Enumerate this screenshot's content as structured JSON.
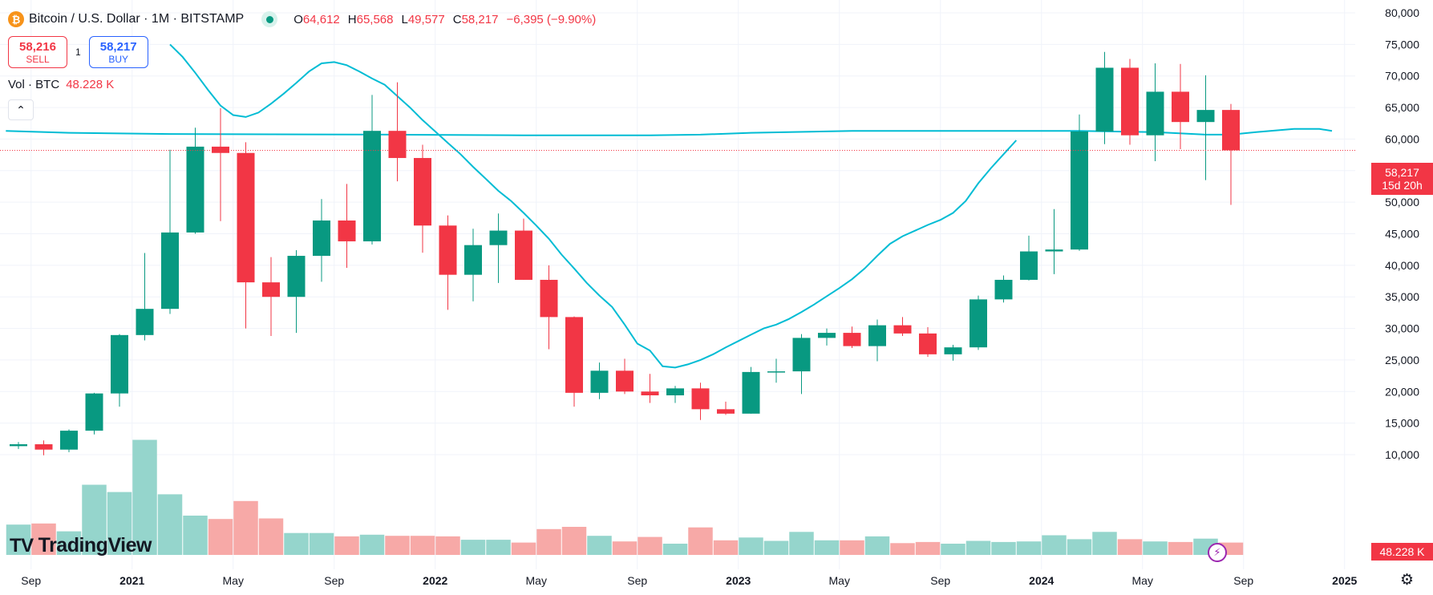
{
  "header": {
    "coin_icon": "bitcoin-icon",
    "coin_glyph": "₿",
    "title": "Bitcoin / U.S. Dollar · 1M · BITSTAMP",
    "ohlc": {
      "o_key": "O",
      "o_val": "64,612",
      "h_key": "H",
      "h_val": "65,568",
      "l_key": "L",
      "l_val": "49,577",
      "c_key": "C",
      "c_val": "58,217",
      "change": "−6,395 (−9.90%)"
    }
  },
  "trade": {
    "sell_price": "58,216",
    "sell_label": "SELL",
    "spread": "1",
    "buy_price": "58,217",
    "buy_label": "BUY"
  },
  "volume_legend": {
    "label": "Vol · BTC",
    "value": "48.228 K"
  },
  "collapse_icon": "chevron-up-icon",
  "collapse_glyph": "⌃",
  "logo": {
    "mark": "TV",
    "text": "TradingView"
  },
  "last_price": {
    "value": "58,217",
    "countdown": "15d 20h"
  },
  "last_volume": "48.228 K",
  "settings_icon": "gear-icon",
  "settings_glyph": "⚙",
  "bolt_icon": "lightning-icon",
  "bolt_glyph": "⚡",
  "colors": {
    "up": "#089981",
    "down": "#f23645",
    "vol_up": "#95d5cc",
    "vol_down": "#f7a9a7",
    "ma": "#00bcd4",
    "grid": "#f0f3fa",
    "axis_text": "#131722"
  },
  "chart_data": {
    "type": "candlestick",
    "title": "Bitcoin / U.S. Dollar · 1M · BITSTAMP",
    "ylim": [
      10000,
      80000
    ],
    "y_ticks": [
      10000,
      15000,
      20000,
      25000,
      30000,
      35000,
      40000,
      45000,
      50000,
      55000,
      60000,
      65000,
      70000,
      75000,
      80000
    ],
    "y_tick_labels": [
      "10,000",
      "15,000",
      "20,000",
      "25,000",
      "30,000",
      "35,000",
      "40,000",
      "45,000",
      "50,000",
      "55,000",
      "60,000",
      "65,000",
      "70,000",
      "75,000",
      "80,000"
    ],
    "x_ticks": [
      {
        "label": "Sep",
        "index": 0.5
      },
      {
        "label": "2021",
        "index": 4.5
      },
      {
        "label": "May",
        "index": 8.5
      },
      {
        "label": "Sep",
        "index": 12.5
      },
      {
        "label": "2022",
        "index": 16.5
      },
      {
        "label": "May",
        "index": 20.5
      },
      {
        "label": "Sep",
        "index": 24.5
      },
      {
        "label": "2023",
        "index": 28.5
      },
      {
        "label": "May",
        "index": 32.5
      },
      {
        "label": "Sep",
        "index": 36.5
      },
      {
        "label": "2024",
        "index": 40.5
      },
      {
        "label": "May",
        "index": 44.5
      },
      {
        "label": "Sep",
        "index": 48.5
      },
      {
        "label": "2025",
        "index": 52.5
      }
    ],
    "month_count": 54,
    "candles": [
      {
        "o": 11350,
        "h": 12000,
        "l": 10900,
        "c": 11650
      },
      {
        "o": 11650,
        "h": 12250,
        "l": 9900,
        "c": 10800
      },
      {
        "o": 10800,
        "h": 14000,
        "l": 10400,
        "c": 13800
      },
      {
        "o": 13800,
        "h": 19800,
        "l": 13200,
        "c": 19700
      },
      {
        "o": 19700,
        "h": 29100,
        "l": 17600,
        "c": 28950
      },
      {
        "o": 28950,
        "h": 41950,
        "l": 28100,
        "c": 33100
      },
      {
        "o": 33100,
        "h": 58300,
        "l": 32300,
        "c": 45200
      },
      {
        "o": 45200,
        "h": 61800,
        "l": 45000,
        "c": 58800
      },
      {
        "o": 58800,
        "h": 64900,
        "l": 47000,
        "c": 57800
      },
      {
        "o": 57800,
        "h": 59500,
        "l": 30000,
        "c": 37300
      },
      {
        "o": 37300,
        "h": 41300,
        "l": 28800,
        "c": 35000
      },
      {
        "o": 35000,
        "h": 42400,
        "l": 29300,
        "c": 41500
      },
      {
        "o": 41500,
        "h": 50500,
        "l": 37400,
        "c": 47100
      },
      {
        "o": 47100,
        "h": 52900,
        "l": 39600,
        "c": 43800
      },
      {
        "o": 43800,
        "h": 67000,
        "l": 43300,
        "c": 61300
      },
      {
        "o": 61300,
        "h": 69000,
        "l": 53300,
        "c": 57000
      },
      {
        "o": 57000,
        "h": 59100,
        "l": 42000,
        "c": 46300
      },
      {
        "o": 46300,
        "h": 47900,
        "l": 32950,
        "c": 38500
      },
      {
        "o": 38500,
        "h": 45800,
        "l": 34300,
        "c": 43200
      },
      {
        "o": 43200,
        "h": 48200,
        "l": 37200,
        "c": 45500
      },
      {
        "o": 45500,
        "h": 47400,
        "l": 37700,
        "c": 37700
      },
      {
        "o": 37700,
        "h": 40000,
        "l": 26700,
        "c": 31800
      },
      {
        "o": 31800,
        "h": 31900,
        "l": 17600,
        "c": 19800
      },
      {
        "o": 19800,
        "h": 24600,
        "l": 18800,
        "c": 23300
      },
      {
        "o": 23300,
        "h": 25200,
        "l": 19600,
        "c": 20000
      },
      {
        "o": 20000,
        "h": 22800,
        "l": 18200,
        "c": 19400
      },
      {
        "o": 19400,
        "h": 20900,
        "l": 18200,
        "c": 20500
      },
      {
        "o": 20500,
        "h": 21400,
        "l": 15500,
        "c": 17200
      },
      {
        "o": 17200,
        "h": 18400,
        "l": 16300,
        "c": 16500
      },
      {
        "o": 16500,
        "h": 23900,
        "l": 16500,
        "c": 23100
      },
      {
        "o": 23100,
        "h": 25200,
        "l": 21400,
        "c": 23200
      },
      {
        "o": 23200,
        "h": 29100,
        "l": 19600,
        "c": 28500
      },
      {
        "o": 28500,
        "h": 30000,
        "l": 27300,
        "c": 29300
      },
      {
        "o": 29300,
        "h": 30300,
        "l": 26900,
        "c": 27200
      },
      {
        "o": 27200,
        "h": 31400,
        "l": 24800,
        "c": 30500
      },
      {
        "o": 30500,
        "h": 31800,
        "l": 28800,
        "c": 29200
      },
      {
        "o": 29200,
        "h": 30200,
        "l": 25500,
        "c": 25900
      },
      {
        "o": 25900,
        "h": 27400,
        "l": 24900,
        "c": 27000
      },
      {
        "o": 27000,
        "h": 35200,
        "l": 26600,
        "c": 34600
      },
      {
        "o": 34600,
        "h": 38400,
        "l": 34100,
        "c": 37700
      },
      {
        "o": 37700,
        "h": 44700,
        "l": 37600,
        "c": 42200
      },
      {
        "o": 42200,
        "h": 48900,
        "l": 38600,
        "c": 42500
      },
      {
        "o": 42500,
        "h": 63900,
        "l": 42300,
        "c": 61200
      },
      {
        "o": 61200,
        "h": 73800,
        "l": 59200,
        "c": 71300
      },
      {
        "o": 71300,
        "h": 72700,
        "l": 59100,
        "c": 60600
      },
      {
        "o": 60600,
        "h": 72000,
        "l": 56500,
        "c": 67500
      },
      {
        "o": 67500,
        "h": 71900,
        "l": 58400,
        "c": 62700
      },
      {
        "o": 62700,
        "h": 70100,
        "l": 53500,
        "c": 64612
      },
      {
        "o": 64612,
        "h": 65568,
        "l": 49577,
        "c": 58217
      }
    ],
    "volume_max": 80000,
    "volumes": [
      {
        "v": 5400,
        "up": true
      },
      {
        "v": 5600,
        "up": false
      },
      {
        "v": 4200,
        "up": true
      },
      {
        "v": 12500,
        "up": true
      },
      {
        "v": 11200,
        "up": true
      },
      {
        "v": 20500,
        "up": true
      },
      {
        "v": 10800,
        "up": true
      },
      {
        "v": 7000,
        "up": true
      },
      {
        "v": 6400,
        "up": false
      },
      {
        "v": 9600,
        "up": false
      },
      {
        "v": 6500,
        "up": false
      },
      {
        "v": 3900,
        "up": true
      },
      {
        "v": 3900,
        "up": true
      },
      {
        "v": 3300,
        "up": false
      },
      {
        "v": 3600,
        "up": true
      },
      {
        "v": 3400,
        "up": false
      },
      {
        "v": 3400,
        "up": false
      },
      {
        "v": 3300,
        "up": false
      },
      {
        "v": 2700,
        "up": true
      },
      {
        "v": 2700,
        "up": true
      },
      {
        "v": 2200,
        "up": false
      },
      {
        "v": 4600,
        "up": false
      },
      {
        "v": 5000,
        "up": false
      },
      {
        "v": 3400,
        "up": true
      },
      {
        "v": 2400,
        "up": false
      },
      {
        "v": 3200,
        "up": false
      },
      {
        "v": 2000,
        "up": true
      },
      {
        "v": 4900,
        "up": false
      },
      {
        "v": 2600,
        "up": false
      },
      {
        "v": 3100,
        "up": true
      },
      {
        "v": 2500,
        "up": true
      },
      {
        "v": 4100,
        "up": true
      },
      {
        "v": 2600,
        "up": true
      },
      {
        "v": 2600,
        "up": false
      },
      {
        "v": 3300,
        "up": true
      },
      {
        "v": 2100,
        "up": false
      },
      {
        "v": 2300,
        "up": false
      },
      {
        "v": 2000,
        "up": true
      },
      {
        "v": 2500,
        "up": true
      },
      {
        "v": 2300,
        "up": true
      },
      {
        "v": 2400,
        "up": true
      },
      {
        "v": 3500,
        "up": true
      },
      {
        "v": 2800,
        "up": true
      },
      {
        "v": 4100,
        "up": true
      },
      {
        "v": 2800,
        "up": false
      },
      {
        "v": 2400,
        "up": true
      },
      {
        "v": 2300,
        "up": false
      },
      {
        "v": 2900,
        "up": true
      },
      {
        "v": 2200,
        "up": false
      }
    ],
    "ma_fast": [
      {
        "i": 6.0,
        "p": 75000
      },
      {
        "i": 6.5,
        "p": 73000
      },
      {
        "i": 7.0,
        "p": 70500
      },
      {
        "i": 7.5,
        "p": 67800
      },
      {
        "i": 8.0,
        "p": 65300
      },
      {
        "i": 8.5,
        "p": 63800
      },
      {
        "i": 9.0,
        "p": 63500
      },
      {
        "i": 9.5,
        "p": 64200
      },
      {
        "i": 10.0,
        "p": 65600
      },
      {
        "i": 10.5,
        "p": 67200
      },
      {
        "i": 11.0,
        "p": 68900
      },
      {
        "i": 11.5,
        "p": 70700
      },
      {
        "i": 12.0,
        "p": 72000
      },
      {
        "i": 12.5,
        "p": 72200
      },
      {
        "i": 13.0,
        "p": 71700
      },
      {
        "i": 13.5,
        "p": 70700
      },
      {
        "i": 14.0,
        "p": 69600
      },
      {
        "i": 14.5,
        "p": 68600
      },
      {
        "i": 15.0,
        "p": 66800
      },
      {
        "i": 15.5,
        "p": 65000
      },
      {
        "i": 16.0,
        "p": 63000
      },
      {
        "i": 16.5,
        "p": 61200
      },
      {
        "i": 17.0,
        "p": 59400
      },
      {
        "i": 17.5,
        "p": 57600
      },
      {
        "i": 18.0,
        "p": 55600
      },
      {
        "i": 18.5,
        "p": 53700
      },
      {
        "i": 19.0,
        "p": 51800
      },
      {
        "i": 19.5,
        "p": 50200
      },
      {
        "i": 20.0,
        "p": 48300
      },
      {
        "i": 20.5,
        "p": 46300
      },
      {
        "i": 21.0,
        "p": 44200
      },
      {
        "i": 21.5,
        "p": 41700
      },
      {
        "i": 22.0,
        "p": 39500
      },
      {
        "i": 22.5,
        "p": 37200
      },
      {
        "i": 23.0,
        "p": 35200
      },
      {
        "i": 23.5,
        "p": 33400
      },
      {
        "i": 24.0,
        "p": 30600
      },
      {
        "i": 24.5,
        "p": 27600
      },
      {
        "i": 25.0,
        "p": 26500
      },
      {
        "i": 25.5,
        "p": 24000
      },
      {
        "i": 26.0,
        "p": 23800
      },
      {
        "i": 26.5,
        "p": 24300
      },
      {
        "i": 27.0,
        "p": 25000
      },
      {
        "i": 27.5,
        "p": 25900
      },
      {
        "i": 28.0,
        "p": 27000
      },
      {
        "i": 28.5,
        "p": 28000
      },
      {
        "i": 29.0,
        "p": 29000
      },
      {
        "i": 29.5,
        "p": 30000
      },
      {
        "i": 30.0,
        "p": 30600
      },
      {
        "i": 30.5,
        "p": 31500
      },
      {
        "i": 31.0,
        "p": 32600
      },
      {
        "i": 31.5,
        "p": 33800
      },
      {
        "i": 32.0,
        "p": 35100
      },
      {
        "i": 32.5,
        "p": 36400
      },
      {
        "i": 33.0,
        "p": 37800
      },
      {
        "i": 33.5,
        "p": 39500
      },
      {
        "i": 34.0,
        "p": 41500
      },
      {
        "i": 34.5,
        "p": 43400
      },
      {
        "i": 35.0,
        "p": 44600
      },
      {
        "i": 35.5,
        "p": 45500
      },
      {
        "i": 36.0,
        "p": 46400
      },
      {
        "i": 36.5,
        "p": 47200
      },
      {
        "i": 37.0,
        "p": 48300
      },
      {
        "i": 37.5,
        "p": 50200
      },
      {
        "i": 38.0,
        "p": 53000
      },
      {
        "i": 38.5,
        "p": 55400
      },
      {
        "i": 39.0,
        "p": 57600
      },
      {
        "i": 39.5,
        "p": 59800
      }
    ],
    "ma_slow": [
      {
        "i": -0.5,
        "p": 61300
      },
      {
        "i": 2.0,
        "p": 61000
      },
      {
        "i": 6.0,
        "p": 60800
      },
      {
        "i": 15.0,
        "p": 60700
      },
      {
        "i": 20.0,
        "p": 60600
      },
      {
        "i": 25.0,
        "p": 60600
      },
      {
        "i": 27.0,
        "p": 60700
      },
      {
        "i": 29.0,
        "p": 61000
      },
      {
        "i": 33.0,
        "p": 61300
      },
      {
        "i": 38.0,
        "p": 61300
      },
      {
        "i": 42.0,
        "p": 61300
      },
      {
        "i": 45.0,
        "p": 61100
      },
      {
        "i": 47.0,
        "p": 60700
      },
      {
        "i": 48.0,
        "p": 60700
      },
      {
        "i": 49.0,
        "p": 61100
      },
      {
        "i": 50.5,
        "p": 61600
      },
      {
        "i": 51.5,
        "p": 61600
      },
      {
        "i": 52.0,
        "p": 61300
      }
    ],
    "last_price": 58217
  }
}
